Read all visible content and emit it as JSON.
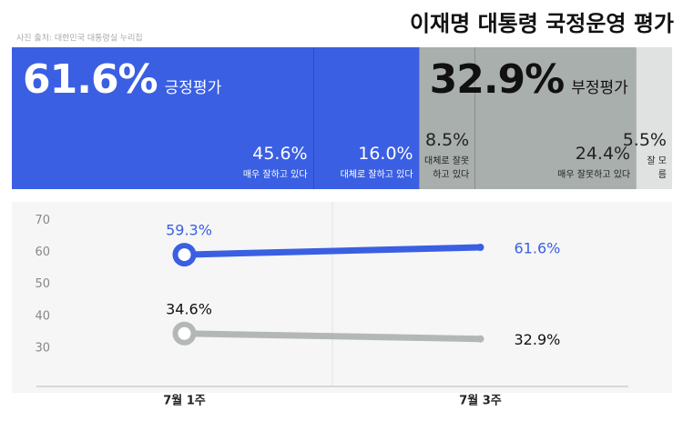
{
  "title": "이재명 대통령 국정운영 평가",
  "source": "사진 출처: 대한민국 대통령실 누리집",
  "chart_data": [
    {
      "type": "stacked-bar",
      "xlim": [
        0,
        100
      ],
      "groups": [
        {
          "name": "긍정평가",
          "value": 61.6,
          "value_label": "61.6%",
          "color": "#3a5fe3"
        },
        {
          "name": "부정평가",
          "value": 32.9,
          "value_label": "32.9%",
          "color": "#a9afad"
        }
      ],
      "categories": [
        "매우 잘하고 있다",
        "대체로 잘하고 있다",
        "대체로 잘못하고 있다",
        "매우 잘못하고 있다",
        "잘 모름"
      ],
      "values": [
        45.6,
        16.0,
        8.5,
        24.4,
        5.5
      ],
      "value_labels": [
        "45.6%",
        "16.0%",
        "8.5%",
        "24.4%",
        "5.5%"
      ]
    },
    {
      "type": "line",
      "categories": [
        "7월 1주",
        "7월 3주"
      ],
      "series": [
        {
          "name": "긍정평가",
          "color": "#3a5fe3",
          "values": [
            59.3,
            61.6
          ],
          "value_labels": [
            "59.3%",
            "61.6%"
          ]
        },
        {
          "name": "부정평가",
          "color": "#b3b8b6",
          "values": [
            34.6,
            32.9
          ],
          "value_labels": [
            "34.6%",
            "32.9%"
          ]
        }
      ],
      "ylim": [
        18,
        75
      ],
      "yticks": [
        30,
        40,
        50,
        60,
        70
      ]
    }
  ]
}
